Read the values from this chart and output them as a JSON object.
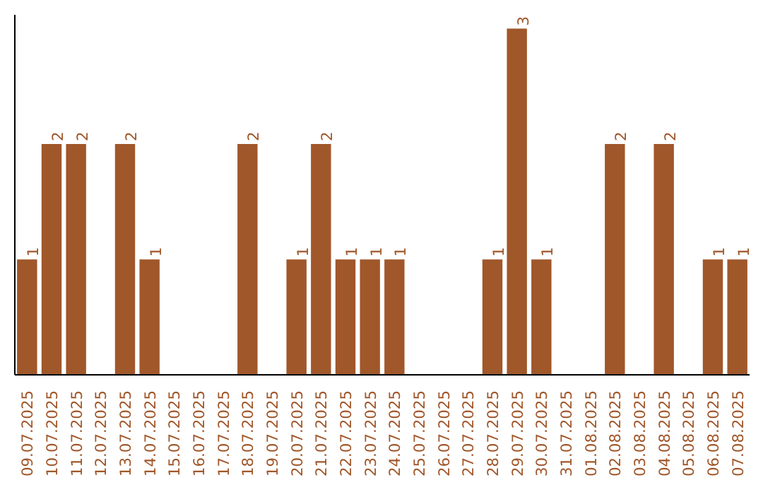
{
  "chart_data": {
    "type": "bar",
    "categories": [
      "09.07.2025",
      "10.07.2025",
      "11.07.2025",
      "12.07.2025",
      "13.07.2025",
      "14.07.2025",
      "15.07.2025",
      "16.07.2025",
      "17.07.2025",
      "18.07.2025",
      "19.07.2025",
      "20.07.2025",
      "21.07.2025",
      "22.07.2025",
      "23.07.2025",
      "24.07.2025",
      "25.07.2025",
      "26.07.2025",
      "27.07.2025",
      "28.07.2025",
      "29.07.2025",
      "30.07.2025",
      "31.07.2025",
      "01.08.2025",
      "02.08.2025",
      "03.08.2025",
      "04.08.2025",
      "05.08.2025",
      "06.08.2025",
      "07.08.2025"
    ],
    "values": [
      1,
      2,
      2,
      0,
      2,
      1,
      0,
      0,
      0,
      2,
      0,
      1,
      2,
      1,
      1,
      1,
      0,
      0,
      0,
      1,
      3,
      1,
      0,
      0,
      2,
      0,
      2,
      0,
      1,
      1
    ],
    "value_labels": [
      "1",
      "2",
      "2",
      null,
      "2",
      "1",
      null,
      null,
      null,
      "2",
      null,
      "1",
      "2",
      "1",
      "1",
      "1",
      null,
      null,
      null,
      "1",
      "3",
      "1",
      null,
      null,
      "2",
      null,
      "2",
      null,
      "1",
      "1"
    ],
    "color": "#a0572a",
    "grid": false,
    "tick_labels": "x"
  }
}
